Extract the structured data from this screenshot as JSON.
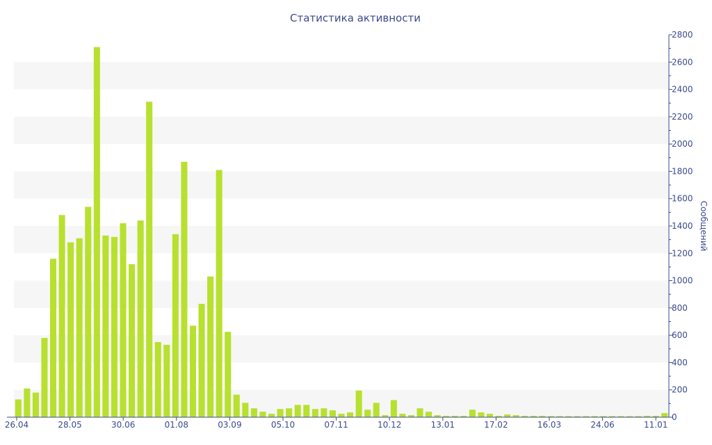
{
  "chart_data": {
    "type": "bar",
    "title": "Статистика активности",
    "xlabel": "",
    "ylabel": "Сообщений",
    "ylim": [
      0,
      2800
    ],
    "y_ticks": [
      0,
      200,
      400,
      600,
      800,
      1000,
      1200,
      1400,
      1600,
      1800,
      2000,
      2200,
      2400,
      2600,
      2800
    ],
    "x_tick_labels": [
      "26.04",
      "28.05",
      "30.06",
      "01.08",
      "03.09",
      "05.10",
      "07.11",
      "10.12",
      "13.01",
      "17.02",
      "16.03",
      "24.06",
      "11.01"
    ],
    "grid": "alternating horizontal bands",
    "bar_color": "#b8e02f",
    "series": [
      {
        "values": [
          130,
          210,
          180,
          580,
          1160,
          1480,
          1280,
          1310,
          1540,
          2710,
          1330,
          1320,
          1420,
          1120,
          1440,
          2310,
          550,
          530,
          1340,
          1870,
          670,
          830,
          1030,
          1810,
          625,
          165,
          105,
          65,
          40,
          25,
          60,
          65,
          90,
          90,
          60,
          65,
          50,
          25,
          35,
          195,
          55,
          105,
          15,
          125,
          25,
          15,
          65,
          40,
          15,
          10,
          10,
          10,
          55,
          35,
          25,
          10,
          20,
          15,
          10,
          10,
          10,
          8,
          8,
          8,
          8,
          8,
          8,
          8,
          8,
          8,
          8,
          8,
          10,
          10,
          30
        ]
      }
    ]
  },
  "colors": {
    "axis": "#3b4a8c",
    "title": "#3b4a8c",
    "band": "#f6f6f6",
    "bar": "#b8e02f"
  }
}
